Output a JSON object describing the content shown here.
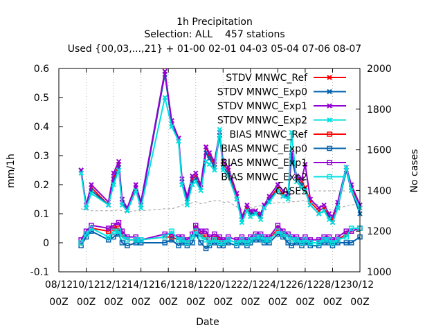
{
  "chart_data": {
    "type": "line",
    "title": "1h Precipitation",
    "subtitle": "Selection: ALL    457 stations",
    "subtitle2": "Used {00,03,...,21} + 01-00 02-01 04-03 05-04 07-06 08-07",
    "xlabel": "Date",
    "ylabel": "mm/1h",
    "y2label": "No cases",
    "ylim": [
      -0.1,
      0.6
    ],
    "y2lim": [
      1000,
      2000
    ],
    "xlim": [
      8,
      30
    ],
    "yticks": [
      "-0.1",
      "0",
      "0.1",
      "0.2",
      "0.3",
      "0.4",
      "0.5",
      "0.6"
    ],
    "y2ticks": [
      "1000",
      "1200",
      "1400",
      "1600",
      "1800",
      "2000"
    ],
    "xticks": [
      {
        "top": "08/12",
        "bottom": "00Z"
      },
      {
        "top": "10/12",
        "bottom": "00Z"
      },
      {
        "top": "12/12",
        "bottom": "00Z"
      },
      {
        "top": "14/12",
        "bottom": "00Z"
      },
      {
        "top": "16/12",
        "bottom": "00Z"
      },
      {
        "top": "18/12",
        "bottom": "00Z"
      },
      {
        "top": "20/12",
        "bottom": "00Z"
      },
      {
        "top": "22/12",
        "bottom": "00Z"
      },
      {
        "top": "24/12",
        "bottom": "00Z"
      },
      {
        "top": "26/12",
        "bottom": "00Z"
      },
      {
        "top": "28/12",
        "bottom": "00Z"
      },
      {
        "top": "30/12",
        "bottom": "00Z"
      }
    ],
    "legend_position": "top-right",
    "x": [
      9.625,
      10.0,
      10.375,
      11.625,
      12.0,
      12.375,
      12.625,
      13.0,
      13.625,
      14.0,
      15.75,
      16.25,
      16.75,
      17.0,
      17.375,
      17.75,
      18.0,
      18.375,
      18.75,
      19.0,
      19.375,
      19.75,
      20.0,
      20.375,
      21.0,
      21.375,
      21.75,
      22.0,
      22.375,
      22.75,
      23.0,
      23.375,
      24.0,
      24.375,
      24.75,
      25.0,
      25.375,
      25.75,
      26.0,
      26.375,
      27.0,
      27.375,
      27.75,
      28.0,
      28.375,
      29.0,
      29.375,
      30.0
    ],
    "series": [
      {
        "name": "STDV MNWC_Ref",
        "color": "#ff0000",
        "marker": "x",
        "axis": "y1",
        "values": [
          0.25,
          0.12,
          0.19,
          0.13,
          0.22,
          0.27,
          0.14,
          0.11,
          0.19,
          0.13,
          0.59,
          0.41,
          0.36,
          0.21,
          0.14,
          0.22,
          0.23,
          0.19,
          0.33,
          0.3,
          0.27,
          0.38,
          0.27,
          0.25,
          0.16,
          0.09,
          0.12,
          0.1,
          0.11,
          0.09,
          0.13,
          0.15,
          0.19,
          0.17,
          0.16,
          0.3,
          0.23,
          0.21,
          0.19,
          0.14,
          0.11,
          0.12,
          0.09,
          0.08,
          0.13,
          0.25,
          0.19,
          0.12
        ]
      },
      {
        "name": "STDV MNWC_Exp0",
        "color": "#0060ad",
        "marker": "x",
        "axis": "y1",
        "values": [
          0.25,
          0.12,
          0.18,
          0.13,
          0.21,
          0.26,
          0.14,
          0.11,
          0.18,
          0.13,
          0.58,
          0.41,
          0.35,
          0.21,
          0.14,
          0.21,
          0.22,
          0.19,
          0.31,
          0.29,
          0.26,
          0.37,
          0.26,
          0.24,
          0.15,
          0.08,
          0.11,
          0.1,
          0.1,
          0.09,
          0.12,
          0.15,
          0.18,
          0.16,
          0.16,
          0.29,
          0.22,
          0.2,
          0.18,
          0.13,
          0.1,
          0.11,
          0.09,
          0.07,
          0.12,
          0.25,
          0.18,
          0.1
        ]
      },
      {
        "name": "STDV MNWC_Exp1",
        "color": "#9400d3",
        "marker": "x",
        "axis": "y1",
        "values": [
          0.25,
          0.13,
          0.2,
          0.14,
          0.24,
          0.28,
          0.15,
          0.12,
          0.2,
          0.14,
          0.59,
          0.42,
          0.36,
          0.22,
          0.16,
          0.23,
          0.24,
          0.2,
          0.33,
          0.31,
          0.28,
          0.38,
          0.28,
          0.26,
          0.17,
          0.09,
          0.13,
          0.11,
          0.11,
          0.1,
          0.13,
          0.16,
          0.2,
          0.18,
          0.17,
          0.31,
          0.23,
          0.22,
          0.27,
          0.15,
          0.12,
          0.13,
          0.1,
          0.09,
          0.14,
          0.26,
          0.2,
          0.13
        ]
      },
      {
        "name": "STDV MNWC_Exp2",
        "color": "#00e0e0",
        "marker": "x",
        "axis": "y1",
        "values": [
          0.24,
          0.12,
          0.17,
          0.13,
          0.2,
          0.25,
          0.13,
          0.11,
          0.18,
          0.12,
          0.5,
          0.4,
          0.35,
          0.2,
          0.13,
          0.2,
          0.21,
          0.18,
          0.28,
          0.27,
          0.25,
          0.39,
          0.25,
          0.23,
          0.15,
          0.07,
          0.11,
          0.09,
          0.1,
          0.08,
          0.12,
          0.14,
          0.18,
          0.16,
          0.15,
          0.38,
          0.21,
          0.19,
          0.18,
          0.13,
          0.1,
          0.11,
          0.08,
          0.07,
          0.12,
          0.26,
          0.18,
          0.12
        ]
      },
      {
        "name": "BIAS MNWC_Ref",
        "color": "#ff0000",
        "marker": "s",
        "axis": "y1",
        "values": [
          0.0,
          0.03,
          0.05,
          0.04,
          0.05,
          0.05,
          0.03,
          0.01,
          0.01,
          0.01,
          0.02,
          0.02,
          0.01,
          0.01,
          0.0,
          0.02,
          0.05,
          0.03,
          0.02,
          0.0,
          0.02,
          0.01,
          0.0,
          0.01,
          0.0,
          0.01,
          0.0,
          0.01,
          0.02,
          0.02,
          0.01,
          0.01,
          0.05,
          0.03,
          0.02,
          0.01,
          0.01,
          0.0,
          0.01,
          0.0,
          0.0,
          0.01,
          0.01,
          0.0,
          0.01,
          0.03,
          0.04,
          0.05
        ]
      },
      {
        "name": "BIAS MNWC_Exp0",
        "color": "#0060ad",
        "marker": "s",
        "axis": "y1",
        "values": [
          -0.01,
          0.02,
          0.04,
          0.01,
          0.02,
          0.03,
          0.0,
          -0.01,
          0.0,
          0.0,
          0.0,
          0.01,
          -0.01,
          0.0,
          -0.01,
          0.0,
          0.03,
          0.0,
          -0.02,
          -0.01,
          0.0,
          -0.01,
          -0.01,
          0.0,
          -0.01,
          0.0,
          -0.01,
          0.0,
          0.01,
          0.01,
          0.0,
          0.0,
          0.03,
          0.02,
          0.0,
          -0.01,
          0.0,
          -0.01,
          0.0,
          -0.01,
          -0.01,
          0.0,
          0.0,
          -0.01,
          0.0,
          0.0,
          0.0,
          0.02
        ]
      },
      {
        "name": "BIAS MNWC_Exp1",
        "color": "#9400d3",
        "marker": "s",
        "axis": "y1",
        "values": [
          0.01,
          0.04,
          0.06,
          0.05,
          0.06,
          0.07,
          0.04,
          0.02,
          0.02,
          0.01,
          0.03,
          0.03,
          0.02,
          0.02,
          0.01,
          0.03,
          0.06,
          0.04,
          0.04,
          0.02,
          0.03,
          0.02,
          0.01,
          0.02,
          0.01,
          0.02,
          0.01,
          0.02,
          0.03,
          0.03,
          0.02,
          0.02,
          0.06,
          0.04,
          0.03,
          0.02,
          0.02,
          0.01,
          0.02,
          0.01,
          0.01,
          0.02,
          0.02,
          0.01,
          0.02,
          0.04,
          0.04,
          0.05
        ]
      },
      {
        "name": "BIAS MNWC_Exp2",
        "color": "#00e0e0",
        "marker": "s",
        "axis": "y1",
        "values": [
          0.0,
          0.03,
          0.05,
          0.02,
          0.04,
          0.04,
          0.02,
          0.01,
          0.01,
          0.01,
          0.02,
          0.04,
          0.01,
          0.01,
          0.0,
          0.02,
          0.04,
          0.02,
          0.01,
          0.0,
          0.01,
          0.0,
          0.0,
          0.01,
          0.0,
          0.01,
          0.0,
          0.01,
          0.02,
          0.02,
          0.01,
          0.01,
          0.04,
          0.03,
          0.02,
          0.01,
          0.01,
          0.0,
          0.01,
          0.0,
          0.0,
          0.01,
          0.01,
          0.0,
          0.01,
          0.02,
          0.05,
          0.05
        ]
      },
      {
        "name": "CASES",
        "color": "#a0a0a0",
        "marker": "none",
        "dash": true,
        "axis": "y2",
        "values": [
          1310,
          1305,
          1300,
          1300,
          1300,
          1305,
          1300,
          1295,
          1300,
          1300,
          1310,
          1310,
          1320,
          1330,
          1325,
          1340,
          1345,
          1335,
          1340,
          1345,
          1350,
          1350,
          1340,
          1345,
          1320,
          1305,
          1310,
          1315,
          1320,
          1325,
          1330,
          1335,
          1340,
          1340,
          1340,
          1345,
          1345,
          1350,
          1350,
          1340,
          1330,
          1320,
          1310,
          1300,
          1310,
          1325,
          1330,
          1330
        ]
      }
    ]
  }
}
